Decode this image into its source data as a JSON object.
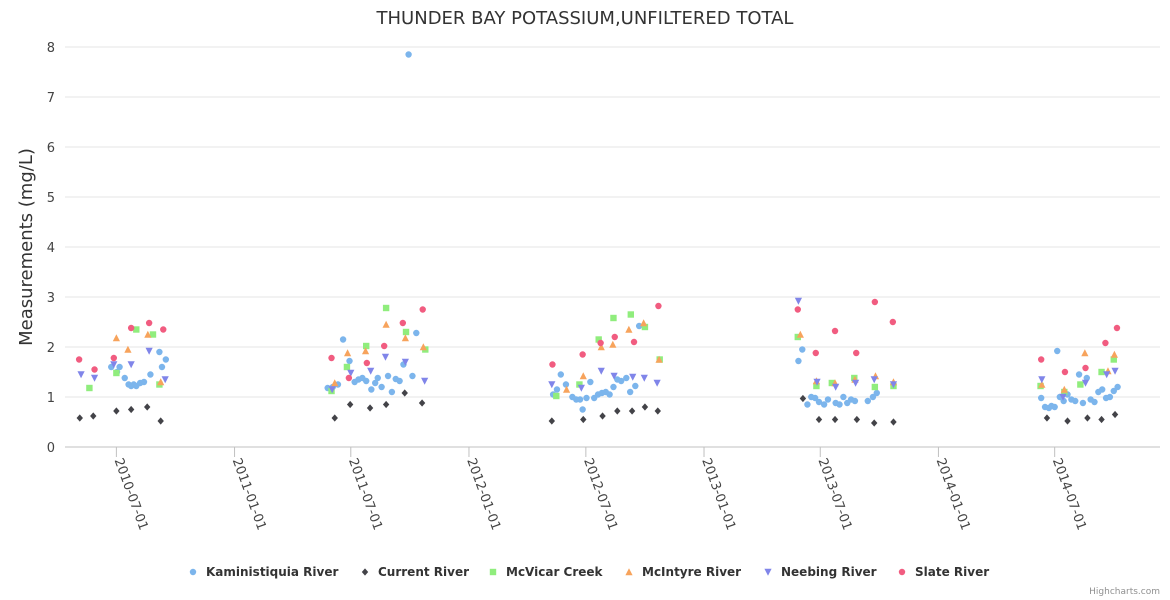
{
  "chart_data": {
    "type": "scatter",
    "title": "THUNDER BAY POTASSIUM,UNFILTERED TOTAL",
    "ylabel": "Measurements (mg/L)",
    "xlabel": "",
    "ylim": [
      0,
      8
    ],
    "yticks": [
      0,
      1,
      2,
      3,
      4,
      5,
      6,
      7,
      8
    ],
    "xlim": [
      "2010-04-12",
      "2014-12-12"
    ],
    "xticks": [
      "2010-07-01",
      "2011-01-01",
      "2011-07-01",
      "2012-01-01",
      "2012-07-01",
      "2013-01-01",
      "2013-07-01",
      "2014-01-01",
      "2014-07-01"
    ],
    "grid": "horizontal",
    "legend_position": "bottom",
    "credits": "Highcharts.com",
    "series": [
      {
        "name": "Kaministiquia River",
        "color": "#7cb5ec",
        "marker": "circle",
        "points": [
          [
            "2010-06-23",
            1.6
          ],
          [
            "2010-07-02",
            1.5
          ],
          [
            "2010-07-06",
            1.6
          ],
          [
            "2010-07-14",
            1.38
          ],
          [
            "2010-07-20",
            1.25
          ],
          [
            "2010-07-24",
            1.22
          ],
          [
            "2010-07-28",
            1.25
          ],
          [
            "2010-08-01",
            1.22
          ],
          [
            "2010-08-07",
            1.28
          ],
          [
            "2010-08-13",
            1.3
          ],
          [
            "2010-08-23",
            1.45
          ],
          [
            "2010-09-06",
            1.9
          ],
          [
            "2010-09-10",
            1.6
          ],
          [
            "2010-09-16",
            1.75
          ],
          [
            "2011-05-26",
            1.18
          ],
          [
            "2011-06-03",
            1.2
          ],
          [
            "2011-06-11",
            1.25
          ],
          [
            "2011-06-19",
            2.15
          ],
          [
            "2011-06-29",
            1.72
          ],
          [
            "2011-07-07",
            1.3
          ],
          [
            "2011-07-13",
            1.35
          ],
          [
            "2011-07-19",
            1.38
          ],
          [
            "2011-07-25",
            1.32
          ],
          [
            "2011-08-02",
            1.15
          ],
          [
            "2011-08-08",
            1.28
          ],
          [
            "2011-08-12",
            1.38
          ],
          [
            "2011-08-18",
            1.2
          ],
          [
            "2011-08-28",
            1.42
          ],
          [
            "2011-09-03",
            1.1
          ],
          [
            "2011-09-09",
            1.36
          ],
          [
            "2011-09-15",
            1.32
          ],
          [
            "2011-09-21",
            1.65
          ],
          [
            "2011-09-29",
            7.85
          ],
          [
            "2011-10-05",
            1.42
          ],
          [
            "2011-10-11",
            2.28
          ],
          [
            "2012-05-11",
            1.05
          ],
          [
            "2012-05-17",
            1.15
          ],
          [
            "2012-05-23",
            1.45
          ],
          [
            "2012-05-31",
            1.25
          ],
          [
            "2012-06-10",
            1.0
          ],
          [
            "2012-06-16",
            0.95
          ],
          [
            "2012-06-22",
            0.95
          ],
          [
            "2012-06-26",
            0.75
          ],
          [
            "2012-07-02",
            0.98
          ],
          [
            "2012-07-08",
            1.3
          ],
          [
            "2012-07-14",
            0.98
          ],
          [
            "2012-07-20",
            1.05
          ],
          [
            "2012-07-26",
            1.08
          ],
          [
            "2012-08-01",
            1.1
          ],
          [
            "2012-08-07",
            1.05
          ],
          [
            "2012-08-13",
            1.2
          ],
          [
            "2012-08-19",
            1.35
          ],
          [
            "2012-08-25",
            1.32
          ],
          [
            "2012-09-02",
            1.38
          ],
          [
            "2012-09-08",
            1.1
          ],
          [
            "2012-09-16",
            1.22
          ],
          [
            "2012-09-22",
            2.42
          ],
          [
            "2013-05-28",
            1.72
          ],
          [
            "2013-06-03",
            1.95
          ],
          [
            "2013-06-11",
            0.85
          ],
          [
            "2013-06-17",
            1.0
          ],
          [
            "2013-06-23",
            0.98
          ],
          [
            "2013-06-29",
            0.9
          ],
          [
            "2013-07-07",
            0.85
          ],
          [
            "2013-07-13",
            0.95
          ],
          [
            "2013-07-25",
            0.88
          ],
          [
            "2013-07-31",
            0.85
          ],
          [
            "2013-08-06",
            1.0
          ],
          [
            "2013-08-12",
            0.88
          ],
          [
            "2013-08-18",
            0.95
          ],
          [
            "2013-08-24",
            0.92
          ],
          [
            "2013-09-13",
            0.92
          ],
          [
            "2013-09-21",
            1.0
          ],
          [
            "2013-09-27",
            1.08
          ],
          [
            "2014-06-10",
            0.98
          ],
          [
            "2014-06-16",
            0.8
          ],
          [
            "2014-06-22",
            0.78
          ],
          [
            "2014-06-26",
            0.82
          ],
          [
            "2014-07-01",
            0.8
          ],
          [
            "2014-07-05",
            1.92
          ],
          [
            "2014-07-09",
            1.0
          ],
          [
            "2014-07-15",
            0.92
          ],
          [
            "2014-07-21",
            1.05
          ],
          [
            "2014-07-27",
            0.95
          ],
          [
            "2014-08-02",
            0.92
          ],
          [
            "2014-08-08",
            1.45
          ],
          [
            "2014-08-14",
            0.88
          ],
          [
            "2014-08-20",
            1.38
          ],
          [
            "2014-08-26",
            0.95
          ],
          [
            "2014-09-01",
            0.9
          ],
          [
            "2014-09-07",
            1.1
          ],
          [
            "2014-09-13",
            1.15
          ],
          [
            "2014-09-19",
            0.98
          ],
          [
            "2014-09-25",
            1.0
          ],
          [
            "2014-10-01",
            1.12
          ],
          [
            "2014-10-07",
            1.2
          ]
        ]
      },
      {
        "name": "Current River",
        "color": "#434348",
        "marker": "diamond",
        "points": [
          [
            "2010-05-05",
            0.58
          ],
          [
            "2010-05-26",
            0.62
          ],
          [
            "2010-07-01",
            0.72
          ],
          [
            "2010-07-24",
            0.75
          ],
          [
            "2010-08-18",
            0.8
          ],
          [
            "2010-09-08",
            0.52
          ],
          [
            "2011-06-06",
            0.58
          ],
          [
            "2011-06-30",
            0.85
          ],
          [
            "2011-07-31",
            0.78
          ],
          [
            "2011-08-25",
            0.85
          ],
          [
            "2011-09-23",
            1.08
          ],
          [
            "2011-10-20",
            0.88
          ],
          [
            "2012-05-09",
            0.52
          ],
          [
            "2012-06-27",
            0.55
          ],
          [
            "2012-07-27",
            0.62
          ],
          [
            "2012-08-19",
            0.72
          ],
          [
            "2012-09-11",
            0.72
          ],
          [
            "2012-10-01",
            0.8
          ],
          [
            "2012-10-21",
            0.72
          ],
          [
            "2013-06-04",
            0.97
          ],
          [
            "2013-06-29",
            0.55
          ],
          [
            "2013-07-24",
            0.55
          ],
          [
            "2013-08-27",
            0.55
          ],
          [
            "2013-09-23",
            0.48
          ],
          [
            "2013-10-23",
            0.5
          ],
          [
            "2014-06-19",
            0.58
          ],
          [
            "2014-07-21",
            0.52
          ],
          [
            "2014-08-21",
            0.58
          ],
          [
            "2014-09-12",
            0.55
          ],
          [
            "2014-10-03",
            0.65
          ]
        ]
      },
      {
        "name": "McVicar Creek",
        "color": "#90ed7d",
        "marker": "square",
        "points": [
          [
            "2010-05-20",
            1.18
          ],
          [
            "2010-07-01",
            1.48
          ],
          [
            "2010-08-01",
            2.35
          ],
          [
            "2010-08-27",
            2.25
          ],
          [
            "2010-09-06",
            1.25
          ],
          [
            "2011-06-01",
            1.12
          ],
          [
            "2011-06-25",
            1.6
          ],
          [
            "2011-07-25",
            2.02
          ],
          [
            "2011-08-25",
            2.78
          ],
          [
            "2011-09-25",
            2.3
          ],
          [
            "2011-10-25",
            1.95
          ],
          [
            "2012-05-16",
            1.02
          ],
          [
            "2012-06-21",
            1.25
          ],
          [
            "2012-07-21",
            2.15
          ],
          [
            "2012-08-13",
            2.58
          ],
          [
            "2012-09-09",
            2.65
          ],
          [
            "2012-10-01",
            2.4
          ],
          [
            "2012-10-24",
            1.75
          ],
          [
            "2013-05-27",
            2.2
          ],
          [
            "2013-06-25",
            1.22
          ],
          [
            "2013-07-19",
            1.28
          ],
          [
            "2013-08-23",
            1.38
          ],
          [
            "2013-09-24",
            1.2
          ],
          [
            "2013-10-23",
            1.22
          ],
          [
            "2014-06-09",
            1.22
          ],
          [
            "2014-07-16",
            1.1
          ],
          [
            "2014-08-10",
            1.25
          ],
          [
            "2014-09-12",
            1.5
          ],
          [
            "2014-10-01",
            1.75
          ]
        ]
      },
      {
        "name": "McIntyre River",
        "color": "#f7a35c",
        "marker": "triangle",
        "points": [
          [
            "2010-07-01",
            2.18
          ],
          [
            "2010-07-19",
            1.95
          ],
          [
            "2010-08-19",
            2.25
          ],
          [
            "2010-09-08",
            1.3
          ],
          [
            "2011-06-06",
            1.28
          ],
          [
            "2011-06-26",
            1.88
          ],
          [
            "2011-07-24",
            1.92
          ],
          [
            "2011-08-25",
            2.45
          ],
          [
            "2011-09-24",
            2.18
          ],
          [
            "2011-10-22",
            2.0
          ],
          [
            "2012-06-01",
            1.15
          ],
          [
            "2012-06-27",
            1.42
          ],
          [
            "2012-07-25",
            2.0
          ],
          [
            "2012-08-12",
            2.05
          ],
          [
            "2012-09-06",
            2.35
          ],
          [
            "2012-09-29",
            2.48
          ],
          [
            "2012-10-23",
            1.75
          ],
          [
            "2013-05-31",
            2.25
          ],
          [
            "2013-06-25",
            1.32
          ],
          [
            "2013-07-24",
            1.28
          ],
          [
            "2013-08-24",
            1.35
          ],
          [
            "2013-09-25",
            1.42
          ],
          [
            "2013-10-23",
            1.3
          ],
          [
            "2014-06-11",
            1.25
          ],
          [
            "2014-07-16",
            1.15
          ],
          [
            "2014-08-17",
            1.88
          ],
          [
            "2014-09-22",
            1.52
          ],
          [
            "2014-10-02",
            1.85
          ]
        ]
      },
      {
        "name": "Neebing River",
        "color": "#8085e9",
        "marker": "triangle-down",
        "points": [
          [
            "2010-05-07",
            1.45
          ],
          [
            "2010-05-28",
            1.38
          ],
          [
            "2010-06-27",
            1.65
          ],
          [
            "2010-07-24",
            1.65
          ],
          [
            "2010-08-21",
            1.92
          ],
          [
            "2010-09-15",
            1.35
          ],
          [
            "2011-06-02",
            1.15
          ],
          [
            "2011-07-01",
            1.48
          ],
          [
            "2011-08-01",
            1.52
          ],
          [
            "2011-08-24",
            1.8
          ],
          [
            "2011-09-24",
            1.7
          ],
          [
            "2011-10-24",
            1.32
          ],
          [
            "2012-05-09",
            1.25
          ],
          [
            "2012-06-24",
            1.18
          ],
          [
            "2012-07-25",
            1.52
          ],
          [
            "2012-08-14",
            1.42
          ],
          [
            "2012-09-12",
            1.4
          ],
          [
            "2012-09-30",
            1.38
          ],
          [
            "2012-10-20",
            1.28
          ],
          [
            "2013-05-28",
            2.92
          ],
          [
            "2013-06-26",
            1.3
          ],
          [
            "2013-07-25",
            1.2
          ],
          [
            "2013-08-25",
            1.28
          ],
          [
            "2013-09-23",
            1.35
          ],
          [
            "2013-10-23",
            1.25
          ],
          [
            "2014-06-11",
            1.35
          ],
          [
            "2014-07-14",
            1.0
          ],
          [
            "2014-08-18",
            1.28
          ],
          [
            "2014-09-20",
            1.45
          ],
          [
            "2014-10-03",
            1.52
          ]
        ]
      },
      {
        "name": "Slate River",
        "color": "#f15c80",
        "marker": "circle",
        "points": [
          [
            "2010-05-04",
            1.75
          ],
          [
            "2010-05-28",
            1.55
          ],
          [
            "2010-06-27",
            1.78
          ],
          [
            "2010-07-24",
            2.38
          ],
          [
            "2010-08-21",
            2.48
          ],
          [
            "2010-09-12",
            2.35
          ],
          [
            "2011-06-01",
            1.78
          ],
          [
            "2011-06-28",
            1.38
          ],
          [
            "2011-07-26",
            1.68
          ],
          [
            "2011-08-22",
            2.02
          ],
          [
            "2011-09-20",
            2.48
          ],
          [
            "2011-10-21",
            2.75
          ],
          [
            "2012-05-10",
            1.65
          ],
          [
            "2012-06-26",
            1.85
          ],
          [
            "2012-07-24",
            2.08
          ],
          [
            "2012-08-15",
            2.2
          ],
          [
            "2012-09-14",
            2.1
          ],
          [
            "2012-10-22",
            2.82
          ],
          [
            "2013-05-27",
            2.75
          ],
          [
            "2013-06-24",
            1.88
          ],
          [
            "2013-07-24",
            2.32
          ],
          [
            "2013-08-26",
            1.88
          ],
          [
            "2013-09-24",
            2.9
          ],
          [
            "2013-10-22",
            2.5
          ],
          [
            "2014-06-10",
            1.75
          ],
          [
            "2014-07-17",
            1.5
          ],
          [
            "2014-08-18",
            1.58
          ],
          [
            "2014-09-18",
            2.08
          ],
          [
            "2014-10-06",
            2.38
          ]
        ]
      }
    ]
  }
}
